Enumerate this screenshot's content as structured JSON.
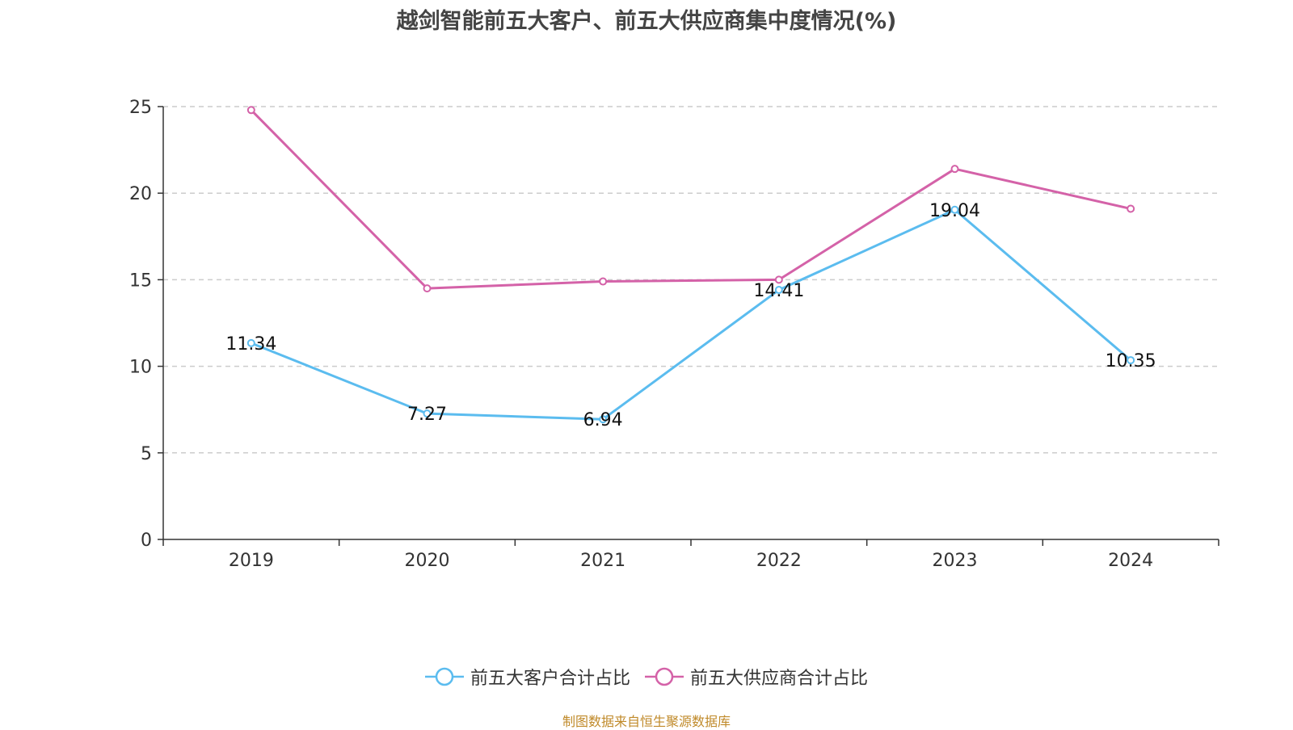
{
  "title": "越剑智能前五大客户、前五大供应商集中度情况(%)",
  "source": "制图数据来自恒生聚源数据库",
  "chart_data": {
    "type": "line",
    "categories": [
      "2019",
      "2020",
      "2021",
      "2022",
      "2023",
      "2024"
    ],
    "ylim": [
      0,
      25
    ],
    "yticks": [
      0,
      5,
      10,
      15,
      20,
      25
    ],
    "grid": true,
    "legend_position": "bottom",
    "series": [
      {
        "name": "前五大客户合计占比",
        "color": "#5bbcef",
        "values": [
          11.34,
          7.27,
          6.94,
          14.41,
          19.04,
          10.35
        ],
        "labels": [
          "11.34",
          "7.27",
          "6.94",
          "14.41",
          "19.04",
          "10.35"
        ]
      },
      {
        "name": "前五大供应商合计占比",
        "color": "#d462a8",
        "values": [
          24.8,
          14.5,
          14.9,
          15.0,
          21.4,
          19.1
        ]
      }
    ]
  }
}
